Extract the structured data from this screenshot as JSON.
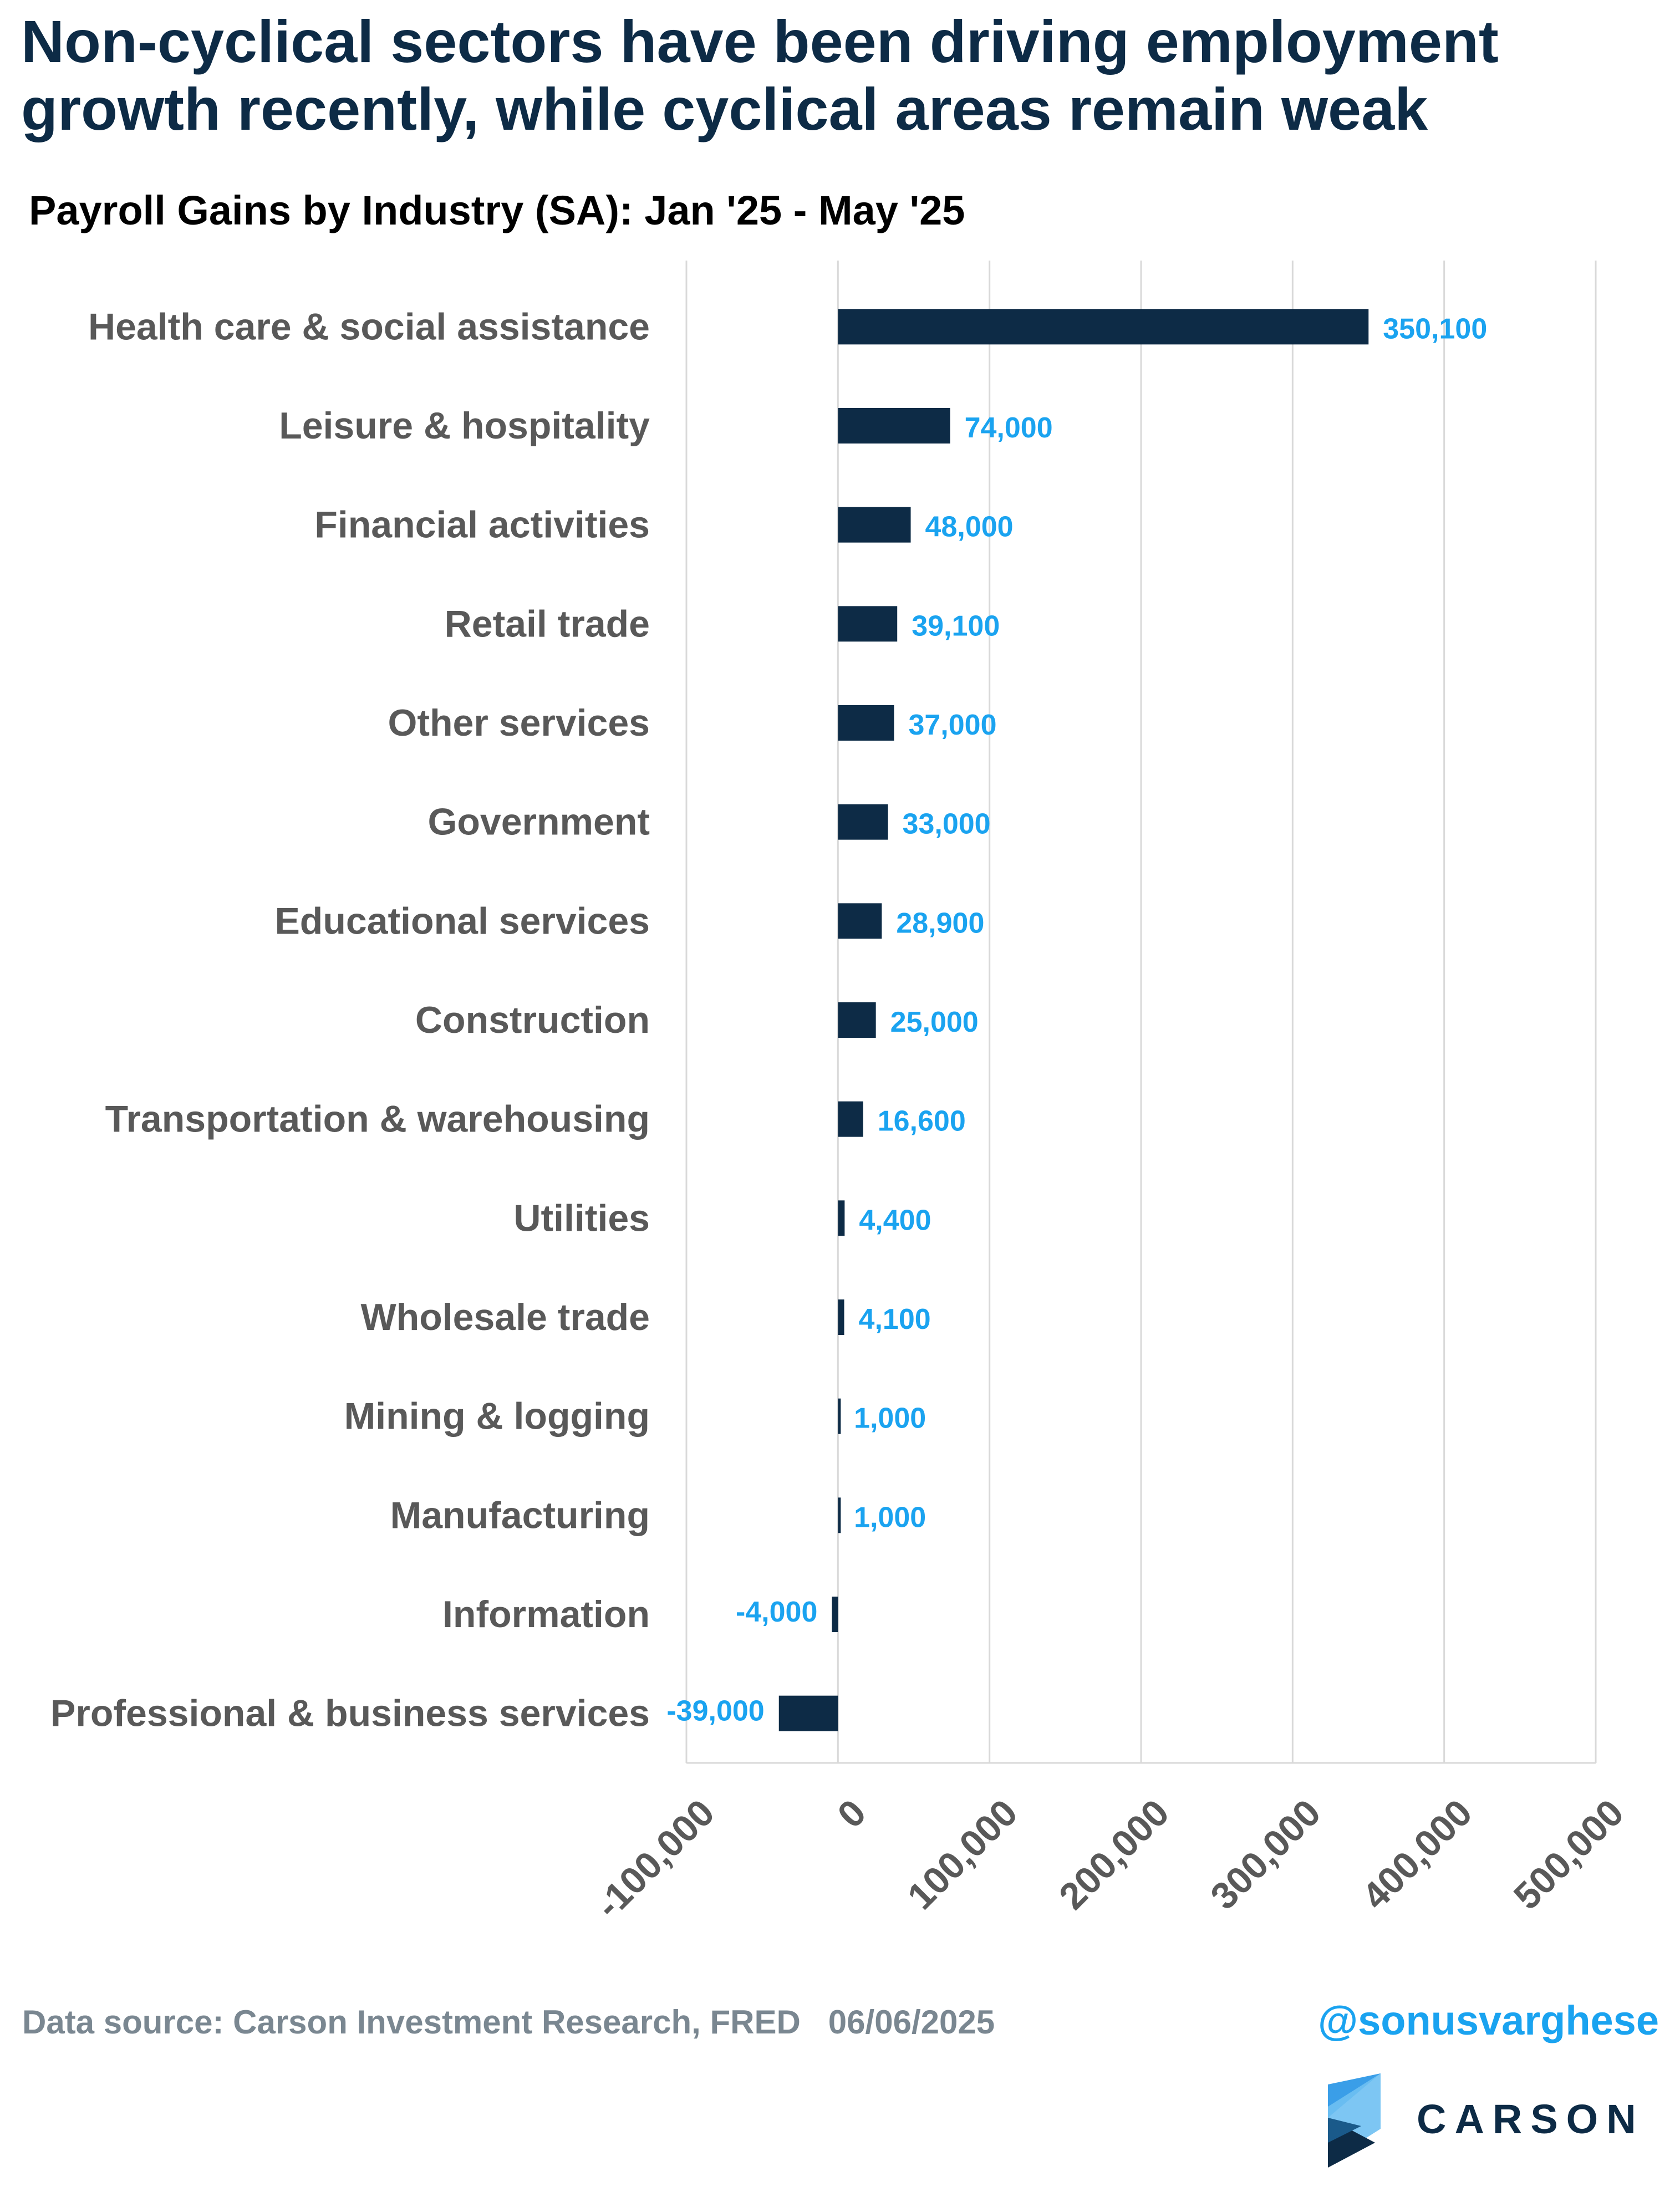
{
  "header": {
    "headline": "Non-cyclical sectors have been driving employment growth recently, while cyclical areas remain weak",
    "subtitle": "Payroll Gains by Industry (SA): Jan '25 - May '25"
  },
  "chart_data": {
    "type": "bar",
    "orientation": "horizontal",
    "title": "Payroll Gains by Industry (SA): Jan '25 - May '25",
    "xlabel": "",
    "ylabel": "",
    "xlim": [
      -100000,
      500000
    ],
    "x_ticks": [
      -100000,
      0,
      100000,
      200000,
      300000,
      400000,
      500000
    ],
    "x_tick_labels": [
      "-100,000",
      "0",
      "100,000",
      "200,000",
      "300,000",
      "400,000",
      "500,000"
    ],
    "grid": "vertical",
    "bar_color": "#0d2b46",
    "label_color": "#1aa3f0",
    "categories": [
      "Health care & social assistance",
      "Leisure & hospitality",
      "Financial activities",
      "Retail trade",
      "Other services",
      "Government",
      "Educational services",
      "Construction",
      "Transportation & warehousing",
      "Utilities",
      "Wholesale trade",
      "Mining & logging",
      "Manufacturing",
      "Information",
      "Professional & business services"
    ],
    "values": [
      350100,
      74000,
      48000,
      39100,
      37000,
      33000,
      28900,
      25000,
      16600,
      4400,
      4100,
      1000,
      1000,
      -4000,
      -39000
    ],
    "value_labels": [
      "350,100",
      "74,000",
      "48,000",
      "39,100",
      "37,000",
      "33,000",
      "28,900",
      "25,000",
      "16,600",
      "4,400",
      "4,100",
      "1,000",
      "1,000",
      "-4,000",
      "-39,000"
    ]
  },
  "footer": {
    "source": "Data source: Carson Investment Research, FRED   06/06/2025",
    "handle": "@sonusvarghese",
    "logo_text": "CARSON"
  }
}
